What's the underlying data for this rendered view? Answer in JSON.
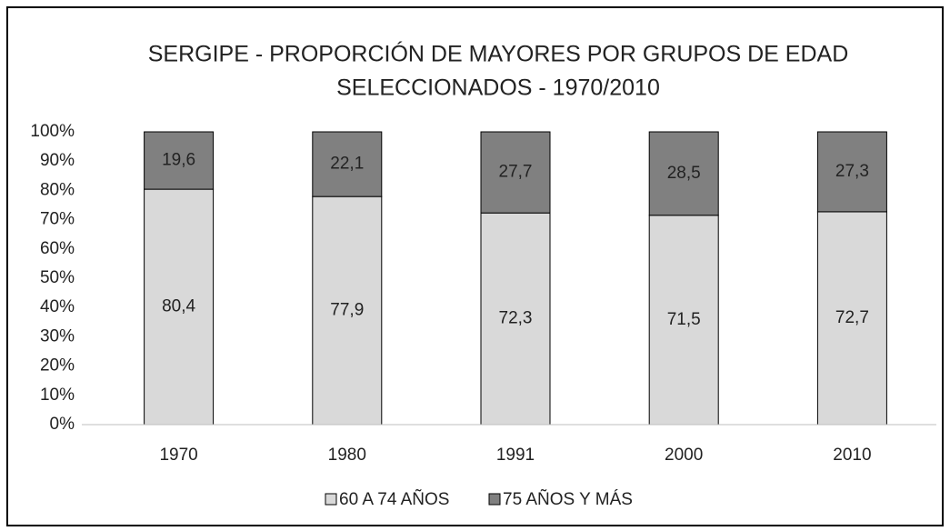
{
  "chart_data": {
    "type": "stacked_bar",
    "title": [
      "SERGIPE - PROPORCIÓN DE MAYORES POR GRUPOS DE EDAD",
      "SELECCIONADOS - 1970/2010"
    ],
    "categories": [
      "1970",
      "1980",
      "1991",
      "2000",
      "2010"
    ],
    "series": [
      {
        "name": "60 A 74 AÑOS",
        "color": "#d9d9d9",
        "values": [
          80.4,
          77.9,
          72.3,
          71.5,
          72.7
        ],
        "value_labels": [
          "80,4",
          "77,9",
          "72,3",
          "71,5",
          "72,7"
        ]
      },
      {
        "name": "75 AÑOS Y MÁS",
        "color": "#808080",
        "values": [
          19.6,
          22.1,
          27.7,
          28.5,
          27.3
        ],
        "value_labels": [
          "19,6",
          "22,1",
          "27,7",
          "28,5",
          "27,3"
        ]
      }
    ],
    "ylim": [
      0,
      100
    ],
    "yticks": [
      {
        "value": 0,
        "label": "0%"
      },
      {
        "value": 10,
        "label": "10%"
      },
      {
        "value": 20,
        "label": "20%"
      },
      {
        "value": 30,
        "label": "30%"
      },
      {
        "value": 40,
        "label": "40%"
      },
      {
        "value": 50,
        "label": "50%"
      },
      {
        "value": 60,
        "label": "60%"
      },
      {
        "value": 70,
        "label": "70%"
      },
      {
        "value": 80,
        "label": "80%"
      },
      {
        "value": 90,
        "label": "90%"
      },
      {
        "value": 100,
        "label": "100%"
      }
    ],
    "grid": false,
    "legend": "bottom"
  }
}
